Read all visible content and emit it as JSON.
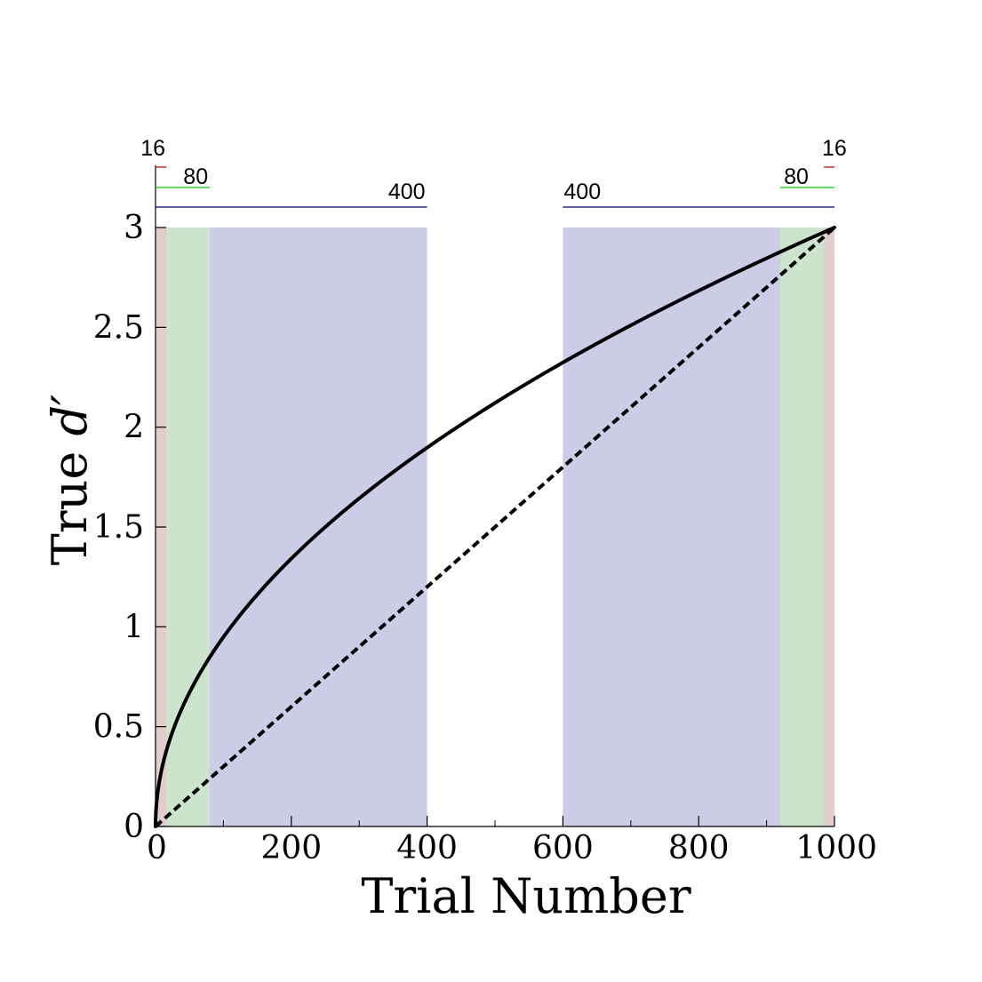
{
  "chart_data": {
    "type": "line",
    "title": "",
    "xlabel": "Trial Number",
    "ylabel_prefix": "True ",
    "ylabel_symbol": "d′",
    "xlim": [
      0,
      1000
    ],
    "ylim": [
      0,
      3
    ],
    "xticks": [
      0,
      200,
      400,
      600,
      800,
      1000
    ],
    "xtick_labels": [
      "0",
      "200",
      "400",
      "600",
      "800",
      "1000"
    ],
    "x_minor_ticks": [
      100,
      300,
      500,
      700,
      900
    ],
    "yticks": [
      0,
      0.5,
      1,
      1.5,
      2,
      2.5,
      3
    ],
    "ytick_labels": [
      "0",
      "0.5",
      "1",
      "1.5",
      "2",
      "2.5",
      "3"
    ],
    "grid": false,
    "legend": "none",
    "series": [
      {
        "style": "solid",
        "color": "#000000",
        "function": "3 * sqrt(x / 1000)",
        "x": [
          0,
          1,
          2,
          4,
          6,
          10,
          16,
          25,
          40,
          60,
          80,
          100,
          150,
          200,
          250,
          300,
          400,
          500,
          600,
          700,
          800,
          900,
          1000
        ],
        "y": [
          0,
          0.095,
          0.134,
          0.19,
          0.232,
          0.3,
          0.379,
          0.474,
          0.6,
          0.735,
          0.849,
          0.949,
          1.162,
          1.342,
          1.5,
          1.643,
          1.897,
          2.121,
          2.324,
          2.51,
          2.683,
          2.846,
          3.0
        ]
      },
      {
        "style": "dashed",
        "color": "#000000",
        "x": [
          0,
          1000
        ],
        "y": [
          0,
          3
        ]
      }
    ],
    "shaded_regions": [
      {
        "x0": 0,
        "x1": 400,
        "color": "#cccce6"
      },
      {
        "x0": 600,
        "x1": 1000,
        "color": "#cccce6"
      },
      {
        "x0": 0,
        "x1": 80,
        "color": "#cce3cc"
      },
      {
        "x0": 920,
        "x1": 1000,
        "color": "#cce3cc"
      },
      {
        "x0": 0,
        "x1": 16,
        "color": "#e3cccc"
      },
      {
        "x0": 984,
        "x1": 1000,
        "color": "#e3cccc"
      }
    ],
    "window_brackets": [
      {
        "x0": 0,
        "x1": 16,
        "label": "16",
        "side": "left",
        "level": 3,
        "color": "#ff0000"
      },
      {
        "x0": 0,
        "x1": 80,
        "label": "80",
        "side": "left",
        "level": 2,
        "color": "#00cc00"
      },
      {
        "x0": 0,
        "x1": 400,
        "label": "400",
        "side": "left",
        "level": 1,
        "color": "#000080"
      },
      {
        "x0": 984,
        "x1": 1000,
        "label": "16",
        "side": "right",
        "level": 3,
        "color": "#ff0000"
      },
      {
        "x0": 920,
        "x1": 1000,
        "label": "80",
        "side": "right",
        "level": 2,
        "color": "#00cc00"
      },
      {
        "x0": 600,
        "x1": 1000,
        "label": "400",
        "side": "right",
        "level": 1,
        "color": "#000080"
      }
    ]
  }
}
